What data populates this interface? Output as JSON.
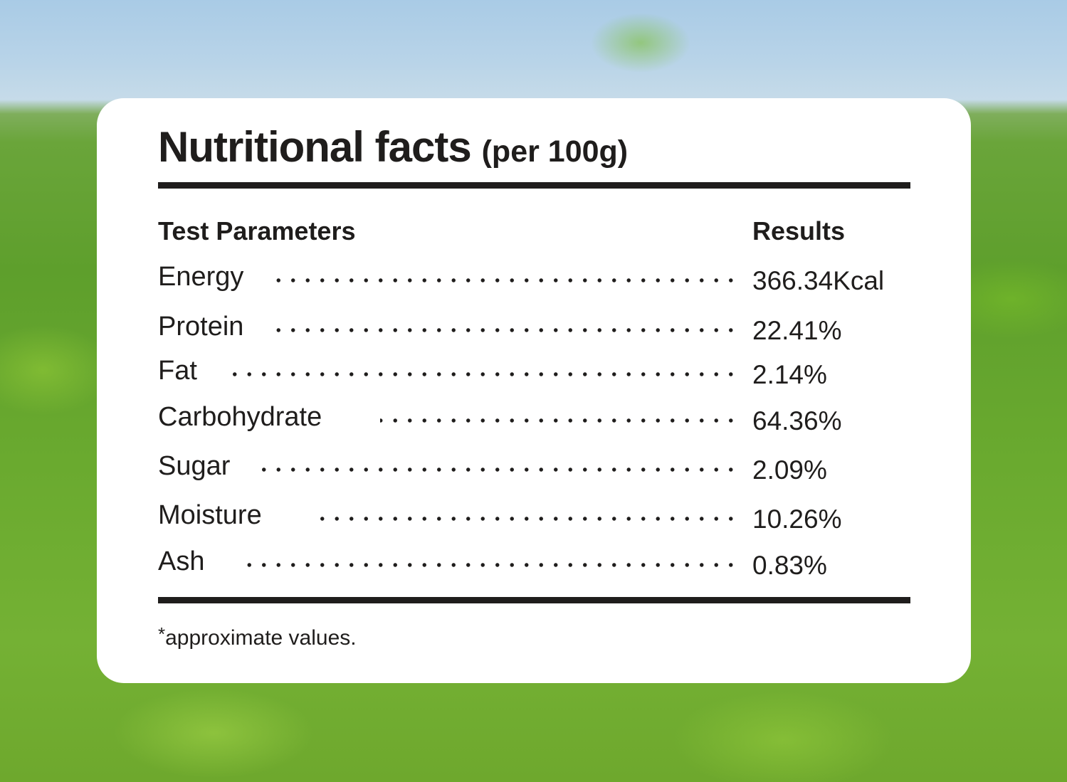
{
  "card": {
    "title": "Nutritional facts",
    "subtitle": "(per 100g)",
    "header": {
      "param": "Test Parameters",
      "result": "Results"
    },
    "rows": [
      {
        "label": "Energy",
        "value": "366.34Kcal"
      },
      {
        "label": "Protein",
        "value": "22.41%"
      },
      {
        "label": "Fat",
        "value": "2.14%"
      },
      {
        "label": "Carbohydrate",
        "value": "64.36%"
      },
      {
        "label": "Sugar",
        "value": "2.09%"
      },
      {
        "label": "Moisture",
        "value": "10.26%"
      },
      {
        "label": "Ash",
        "value": "0.83%"
      }
    ],
    "footnote_mark": "*",
    "footnote": "approximate values."
  },
  "colors": {
    "text": "#1f1d1c",
    "card": "#ffffff",
    "foliage": "#6aa53a",
    "sky": "#b9d4e8"
  }
}
